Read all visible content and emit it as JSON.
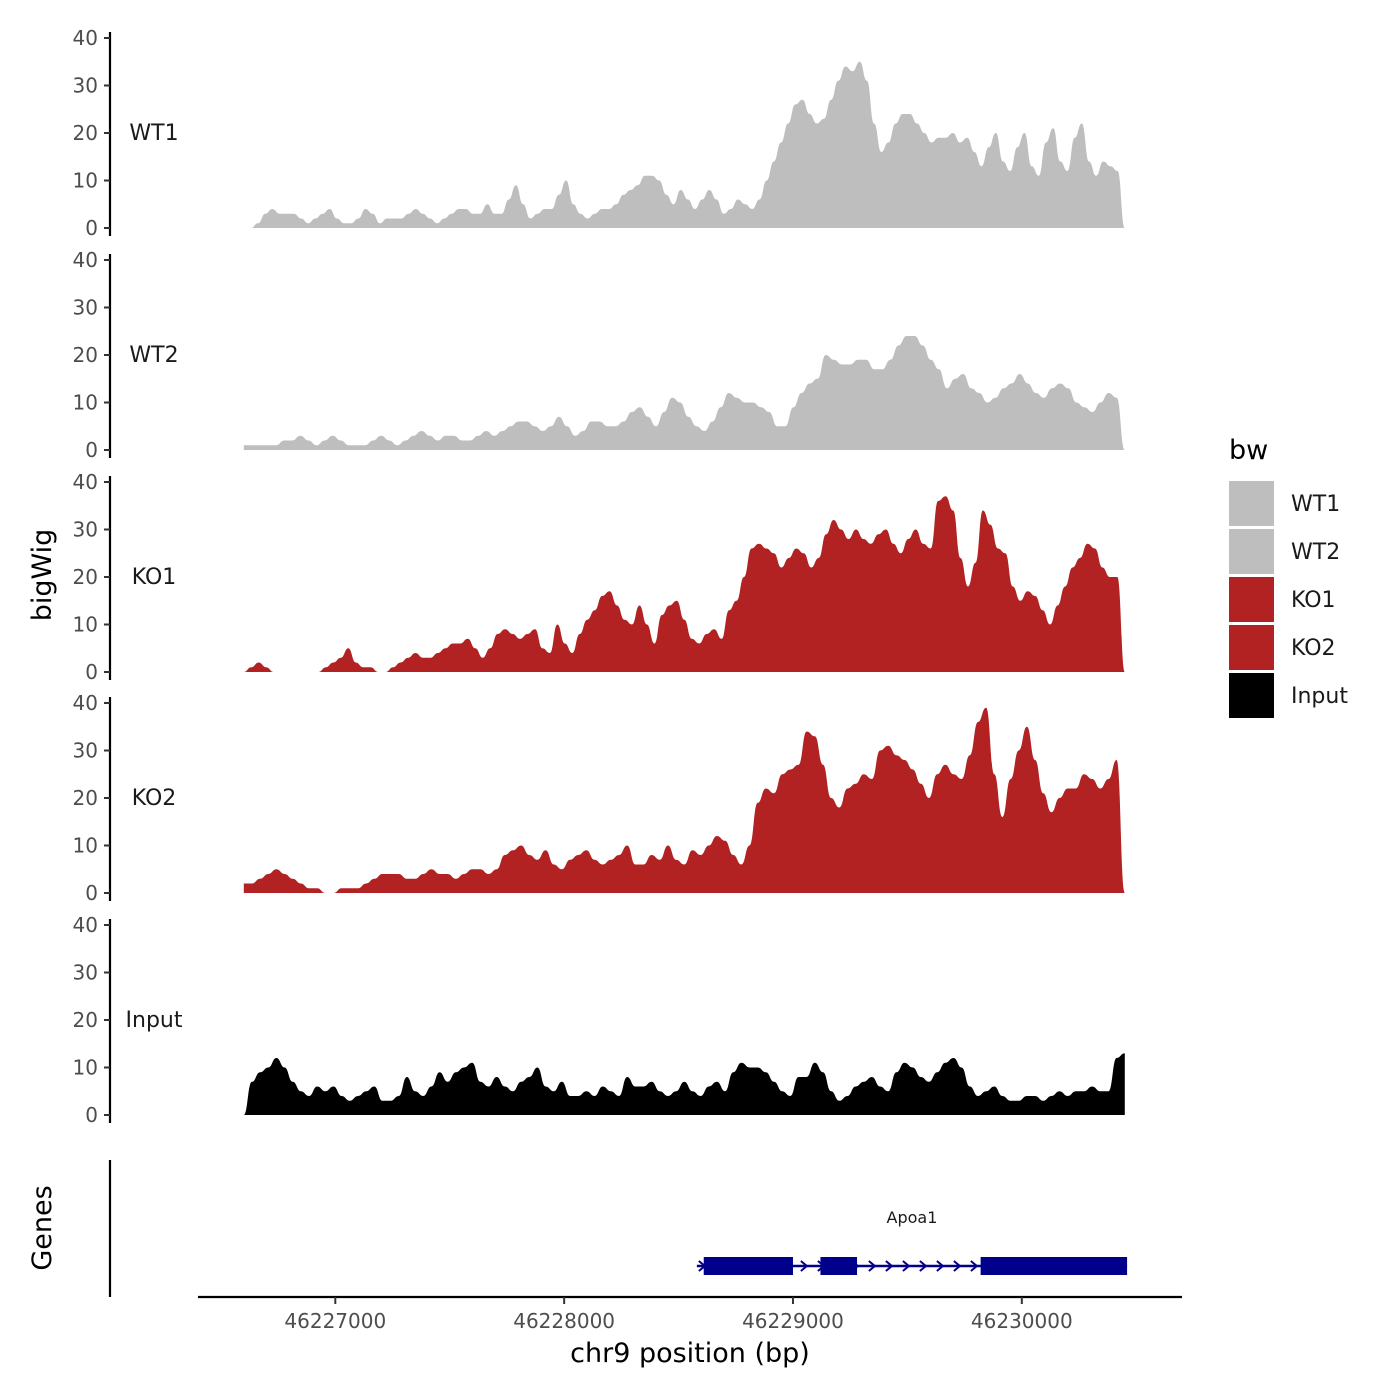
{
  "chart_data": {
    "type": "area",
    "ylabel": "bigWig",
    "xlabel": "chr9 position (bp)",
    "genes_label": "Genes",
    "xlim": [
      46226400,
      46230700
    ],
    "ylim": [
      0,
      40
    ],
    "y_ticks": [
      "0",
      "10",
      "20",
      "30",
      "40"
    ],
    "x_ticks": [
      {
        "value": 46227000,
        "label": "46227000"
      },
      {
        "value": 46228000,
        "label": "46228000"
      },
      {
        "value": 46229000,
        "label": "46229000"
      },
      {
        "value": 46230000,
        "label": "46230000"
      }
    ],
    "legend": {
      "title": "bw",
      "entries": [
        {
          "label": "WT1",
          "color": "#bebebe"
        },
        {
          "label": "WT2",
          "color": "#bebebe"
        },
        {
          "label": "KO1",
          "color": "#b22222"
        },
        {
          "label": "KO2",
          "color": "#b22222"
        },
        {
          "label": "Input",
          "color": "#000000"
        }
      ]
    },
    "series": [
      {
        "name": "WT1",
        "color": "#bebebe",
        "x_start": 46226600,
        "x_end": 46230450,
        "values": [
          0,
          0,
          1,
          3,
          4,
          3,
          3,
          3,
          2,
          1,
          2,
          3,
          4,
          2,
          1,
          1,
          2,
          4,
          3,
          1,
          2,
          2,
          2,
          3,
          4,
          3,
          2,
          1,
          2,
          3,
          4,
          4,
          3,
          3,
          5,
          3,
          3,
          6,
          9,
          5,
          2,
          3,
          4,
          4,
          7,
          10,
          5,
          3,
          2,
          3,
          4,
          4,
          5,
          7,
          8,
          9,
          11,
          11,
          10,
          7,
          5,
          8,
          6,
          4,
          6,
          8,
          6,
          3,
          4,
          6,
          5,
          4,
          6,
          10,
          14,
          18,
          22,
          26,
          27,
          24,
          22,
          23,
          27,
          31,
          34,
          33,
          35,
          31,
          22,
          16,
          18,
          22,
          24,
          24,
          22,
          20,
          18,
          19,
          19,
          20,
          18,
          19,
          16,
          13,
          17,
          20,
          14,
          12,
          17,
          20,
          13,
          11,
          18,
          21,
          14,
          12,
          19,
          22,
          14,
          11,
          14,
          13,
          12,
          0
        ]
      },
      {
        "name": "WT2",
        "color": "#bebebe",
        "x_start": 46226600,
        "x_end": 46230450,
        "values": [
          1,
          1,
          1,
          1,
          1,
          2,
          2,
          3,
          2,
          1,
          2,
          3,
          2,
          1,
          1,
          1,
          2,
          3,
          2,
          1,
          2,
          3,
          4,
          3,
          2,
          3,
          3,
          2,
          2,
          3,
          4,
          3,
          4,
          5,
          6,
          6,
          5,
          4,
          5,
          7,
          5,
          3,
          4,
          6,
          6,
          5,
          5,
          6,
          8,
          9,
          7,
          5,
          8,
          11,
          10,
          7,
          5,
          4,
          6,
          9,
          12,
          11,
          10,
          10,
          9,
          8,
          5,
          5,
          9,
          12,
          14,
          15,
          20,
          19,
          18,
          18,
          19,
          19,
          17,
          17,
          19,
          22,
          24,
          24,
          22,
          19,
          17,
          13,
          15,
          16,
          13,
          12,
          10,
          11,
          13,
          14,
          16,
          14,
          12,
          11,
          13,
          14,
          13,
          10,
          9,
          8,
          10,
          12,
          11,
          0
        ]
      },
      {
        "name": "KO1",
        "color": "#b22222",
        "x_start": 46226600,
        "x_end": 46230450,
        "values": [
          0,
          1,
          2,
          1,
          0,
          0,
          0,
          0,
          0,
          0,
          0,
          1,
          2,
          3,
          5,
          2,
          1,
          1,
          0,
          0,
          1,
          2,
          3,
          4,
          3,
          3,
          4,
          5,
          6,
          6,
          7,
          5,
          3,
          5,
          8,
          9,
          8,
          7,
          8,
          9,
          5,
          4,
          10,
          6,
          4,
          8,
          11,
          13,
          16,
          17,
          14,
          11,
          10,
          14,
          10,
          6,
          12,
          14,
          15,
          11,
          7,
          6,
          8,
          9,
          7,
          13,
          15,
          20,
          26,
          27,
          26,
          25,
          22,
          24,
          26,
          25,
          22,
          24,
          29,
          32,
          30,
          28,
          30,
          28,
          27,
          29,
          30,
          27,
          25,
          28,
          30,
          27,
          26,
          36,
          37,
          34,
          24,
          18,
          23,
          34,
          31,
          26,
          25,
          18,
          15,
          17,
          16,
          13,
          10,
          14,
          18,
          22,
          24,
          27,
          26,
          22,
          20,
          20,
          0
        ]
      },
      {
        "name": "KO2",
        "color": "#b22222",
        "x_start": 46226600,
        "x_end": 46230450,
        "values": [
          2,
          2,
          3,
          4,
          5,
          4,
          3,
          2,
          1,
          1,
          0,
          0,
          1,
          1,
          1,
          2,
          3,
          4,
          4,
          4,
          3,
          3,
          4,
          5,
          4,
          4,
          3,
          4,
          5,
          5,
          4,
          5,
          8,
          9,
          10,
          8,
          7,
          9,
          6,
          5,
          7,
          8,
          9,
          7,
          6,
          7,
          8,
          10,
          6,
          6,
          8,
          7,
          10,
          7,
          6,
          9,
          8,
          10,
          12,
          11,
          8,
          6,
          10,
          19,
          22,
          21,
          25,
          26,
          27,
          34,
          33,
          27,
          20,
          18,
          22,
          23,
          25,
          24,
          30,
          31,
          29,
          28,
          26,
          23,
          20,
          25,
          27,
          25,
          24,
          29,
          36,
          39,
          25,
          16,
          24,
          30,
          35,
          28,
          21,
          17,
          20,
          22,
          22,
          25,
          24,
          22,
          24,
          28,
          0
        ]
      },
      {
        "name": "Input",
        "color": "#000000",
        "x_start": 46226600,
        "x_end": 46230450,
        "values": [
          0,
          7,
          9,
          10,
          12,
          10,
          7,
          5,
          4,
          6,
          5,
          6,
          4,
          3,
          4,
          5,
          6,
          3,
          3,
          4,
          8,
          5,
          4,
          6,
          9,
          7,
          9,
          10,
          11,
          7,
          6,
          8,
          6,
          5,
          7,
          8,
          10,
          6,
          5,
          7,
          4,
          4,
          5,
          4,
          6,
          5,
          4,
          8,
          6,
          6,
          7,
          5,
          4,
          5,
          7,
          5,
          4,
          6,
          7,
          5,
          9,
          11,
          10,
          10,
          9,
          7,
          5,
          4,
          8,
          8,
          11,
          9,
          5,
          3,
          4,
          6,
          7,
          8,
          6,
          5,
          9,
          11,
          10,
          8,
          7,
          9,
          11,
          12,
          10,
          6,
          4,
          5,
          6,
          4,
          3,
          3,
          4,
          4,
          3,
          4,
          5,
          4,
          5,
          5,
          6,
          5,
          5,
          12,
          13
        ]
      }
    ],
    "genes": [
      {
        "name": "Apoa1",
        "strand": "+",
        "start": 46228580,
        "end": 46230460,
        "exons": [
          [
            46228610,
            46229000
          ],
          [
            46229120,
            46229280
          ],
          [
            46229820,
            46230460
          ]
        ]
      }
    ]
  }
}
